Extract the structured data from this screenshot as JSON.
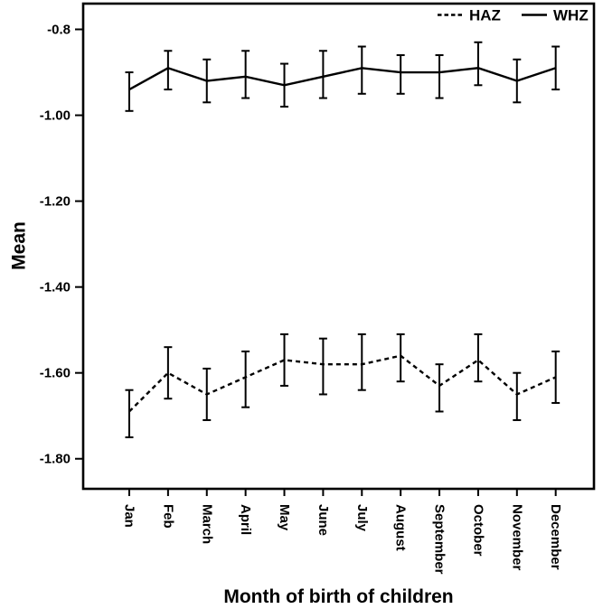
{
  "chart_data": {
    "type": "line",
    "title": "",
    "xlabel": "Month of birth of children",
    "ylabel": "Mean",
    "grid": false,
    "background": "#ffffff",
    "ink_color": "#000000",
    "categories": [
      "Jan",
      "Feb",
      "March",
      "April",
      "May",
      "June",
      "July",
      "August",
      "September",
      "October",
      "November",
      "December"
    ],
    "y_axis": {
      "range_shown": [
        -1.87,
        -0.74
      ],
      "ticks": [
        {
          "value": -0.8,
          "label": "-0.8"
        },
        {
          "value": -1.0,
          "label": "-1.00"
        },
        {
          "value": -1.2,
          "label": "-1.20"
        },
        {
          "value": -1.4,
          "label": "-1.40"
        },
        {
          "value": -1.6,
          "label": "-1.60"
        },
        {
          "value": -1.8,
          "label": "-1.80"
        }
      ]
    },
    "legend": {
      "position": "top-right-inside",
      "entries": [
        {
          "label": "HAZ",
          "line_style": "dashed"
        },
        {
          "label": "WHZ",
          "line_style": "solid"
        }
      ]
    },
    "series": [
      {
        "name": "HAZ",
        "line_style": "dashed",
        "values": [
          -1.69,
          -1.6,
          -1.65,
          -1.61,
          -1.57,
          -1.58,
          -1.58,
          -1.56,
          -1.63,
          -1.57,
          -1.65,
          -1.61
        ],
        "ci_low": [
          -1.75,
          -1.66,
          -1.71,
          -1.68,
          -1.63,
          -1.65,
          -1.64,
          -1.62,
          -1.69,
          -1.62,
          -1.71,
          -1.67
        ],
        "ci_high": [
          -1.64,
          -1.54,
          -1.59,
          -1.55,
          -1.51,
          -1.52,
          -1.51,
          -1.51,
          -1.58,
          -1.51,
          -1.6,
          -1.55
        ]
      },
      {
        "name": "WHZ",
        "line_style": "solid",
        "values": [
          -0.94,
          -0.89,
          -0.92,
          -0.91,
          -0.93,
          -0.91,
          -0.89,
          -0.9,
          -0.9,
          -0.89,
          -0.92,
          -0.89
        ],
        "ci_low": [
          -0.99,
          -0.94,
          -0.97,
          -0.96,
          -0.98,
          -0.96,
          -0.95,
          -0.95,
          -0.96,
          -0.93,
          -0.97,
          -0.94
        ],
        "ci_high": [
          -0.9,
          -0.85,
          -0.87,
          -0.85,
          -0.88,
          -0.85,
          -0.84,
          -0.86,
          -0.86,
          -0.83,
          -0.87,
          -0.84
        ]
      }
    ]
  }
}
